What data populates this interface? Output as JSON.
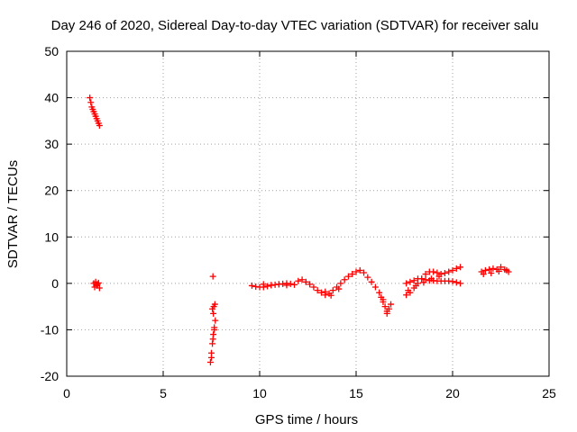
{
  "chart_data": {
    "type": "scatter",
    "title": "Day 246 of 2020, Sidereal Day-to-day VTEC variation (SDTVAR) for receiver salu",
    "xlabel": "GPS time / hours",
    "ylabel": "SDTVAR / TECUs",
    "xlim": [
      0,
      25
    ],
    "ylim": [
      -20,
      50
    ],
    "x_ticks": [
      "0",
      "5",
      "10",
      "15",
      "20",
      "25"
    ],
    "y_ticks": [
      "-20",
      "-10",
      "0",
      "10",
      "20",
      "30",
      "40",
      "50"
    ],
    "grid": true,
    "marker": "+",
    "color": "#ff0000",
    "series": [
      {
        "name": "SDTVAR",
        "x": [
          1.2,
          1.25,
          1.3,
          1.35,
          1.4,
          1.45,
          1.5,
          1.55,
          1.6,
          1.65,
          1.7,
          1.4,
          1.5,
          1.6,
          1.7,
          1.55,
          1.45,
          1.65,
          7.45,
          7.5,
          7.55,
          7.6,
          7.65,
          7.7,
          7.5,
          7.58,
          7.65,
          7.6,
          7.55,
          7.62,
          7.68,
          7.58,
          9.6,
          9.8,
          10,
          10.2,
          10.4,
          10.6,
          10.8,
          11,
          11.2,
          11.4,
          11.6,
          11.8,
          12,
          12.2,
          12.4,
          12.6,
          12.8,
          13,
          13.2,
          13.4,
          13.6,
          13.8,
          14,
          14.2,
          14.4,
          14.6,
          14.8,
          15,
          15.2,
          15.4,
          15.6,
          15.8,
          16,
          10.2,
          10.6,
          11,
          11.4,
          13.4,
          13.7,
          14.1,
          16.2,
          16.3,
          16.4,
          16.5,
          16.6,
          16.7,
          16.8,
          16.4,
          16.6,
          17.6,
          17.8,
          18,
          18.2,
          18.4,
          18.6,
          18.8,
          19,
          19.2,
          19.4,
          19.6,
          19.8,
          20,
          20.2,
          20.4,
          17.6,
          17.8,
          18,
          18.2,
          18.4,
          18.6,
          18.8,
          19,
          19.2,
          19.4,
          19.6,
          19.8,
          20,
          20.2,
          20.4,
          17.7,
          18.1,
          18.5,
          18.9,
          19.3,
          21.5,
          21.7,
          21.9,
          22.1,
          22.3,
          22.5,
          22.7,
          22.9,
          21.6,
          22,
          22.4,
          22.8
        ],
        "y": [
          40,
          39,
          38,
          37.5,
          37,
          36.5,
          36,
          35.5,
          35,
          34.5,
          34,
          0,
          0.3,
          -0.2,
          -1,
          -0.5,
          -0.8,
          0.1,
          -17,
          -15,
          -13,
          -11,
          -9.5,
          -8,
          -16,
          -12,
          -10,
          -6.5,
          -5.5,
          -5,
          -4.5,
          1.5,
          -0.5,
          -0.7,
          -0.8,
          -0.8,
          -0.6,
          -0.4,
          -0.3,
          -0.2,
          -0.1,
          0,
          -0.1,
          -0.3,
          0.5,
          0.8,
          0.3,
          -0.2,
          -0.8,
          -1.5,
          -2,
          -2.5,
          -2.2,
          -1.5,
          -0.8,
          0,
          0.8,
          1.5,
          2,
          2.5,
          2.8,
          2.3,
          1.3,
          0.3,
          -0.8,
          -0.2,
          -0.4,
          -0.2,
          -0.4,
          -1.8,
          -2.6,
          -1.2,
          -2,
          -3,
          -4,
          -5,
          -6.5,
          -5.5,
          -4.5,
          -3.5,
          -6,
          -2.5,
          -2,
          -1,
          0,
          1,
          2,
          2.5,
          2.5,
          2.3,
          2,
          2.2,
          2.5,
          2.8,
          3.2,
          3.5,
          0,
          0.3,
          0.6,
          1,
          1,
          0.8,
          0.6,
          0.6,
          0.5,
          0.5,
          0.5,
          0.5,
          0.4,
          0.2,
          0,
          -1.5,
          -0.5,
          0.2,
          1,
          1.5,
          2.5,
          2.8,
          3,
          3.2,
          3,
          3.5,
          3,
          2.5,
          2,
          2.2,
          2.6,
          2.8
        ]
      }
    ]
  }
}
